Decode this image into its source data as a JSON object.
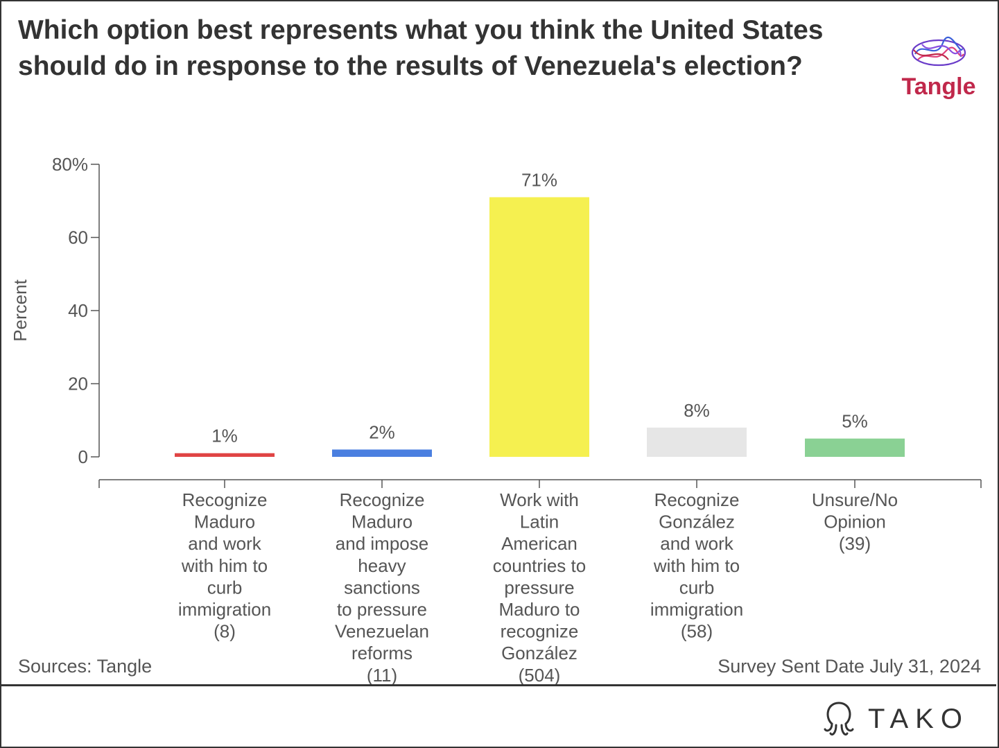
{
  "title": "Which option best represents what you think the United States should do in response to the results of Venezuela's election?",
  "brand_logo": {
    "text": "Tangle",
    "colors": [
      "#c0284b",
      "#6a3cc9",
      "#3b5fd9",
      "#e0417a"
    ]
  },
  "footer": {
    "source": "Sources: Tangle",
    "date": "Survey Sent Date July 31, 2024",
    "watermark": "TAKO"
  },
  "chart_data": {
    "type": "bar",
    "title": "",
    "ylabel": "Percent",
    "xlabel": "",
    "ylim": [
      0,
      80
    ],
    "yticks": [
      0,
      20,
      40,
      60,
      80
    ],
    "ytick_labels": [
      "0",
      "20",
      "40",
      "60",
      "80%"
    ],
    "grid": false,
    "categories": [
      "Recognize Maduro and work with him to curb immigration (8)",
      "Recognize Maduro and impose heavy sanctions to pressure Venezuelan reforms (11)",
      "Work with Latin American countries to pressure Maduro to recognize González (504)",
      "Recognize González and work with him to curb immigration (58)",
      "Unsure/No Opinion (39)"
    ],
    "category_lines": [
      [
        "Recognize",
        "Maduro",
        "and work",
        "with him to",
        "curb",
        "immigration",
        "(8)"
      ],
      [
        "Recognize",
        "Maduro",
        "and impose",
        "heavy",
        "sanctions",
        "to pressure",
        "Venezuelan",
        "reforms",
        "(11)"
      ],
      [
        "Work with",
        "Latin",
        "American",
        "countries to",
        "pressure",
        "Maduro to",
        "recognize",
        "González",
        "(504)"
      ],
      [
        "Recognize",
        "González",
        "and work",
        "with him to",
        "curb",
        "immigration",
        "(58)"
      ],
      [
        "Unsure/No",
        "Opinion",
        "(39)"
      ]
    ],
    "values": [
      1,
      2,
      71,
      8,
      5
    ],
    "data_labels": [
      "1%",
      "2%",
      "71%",
      "8%",
      "5%"
    ],
    "colors": [
      "#e04444",
      "#4a7fe0",
      "#f5f050",
      "#e6e6e6",
      "#8ad194"
    ]
  }
}
